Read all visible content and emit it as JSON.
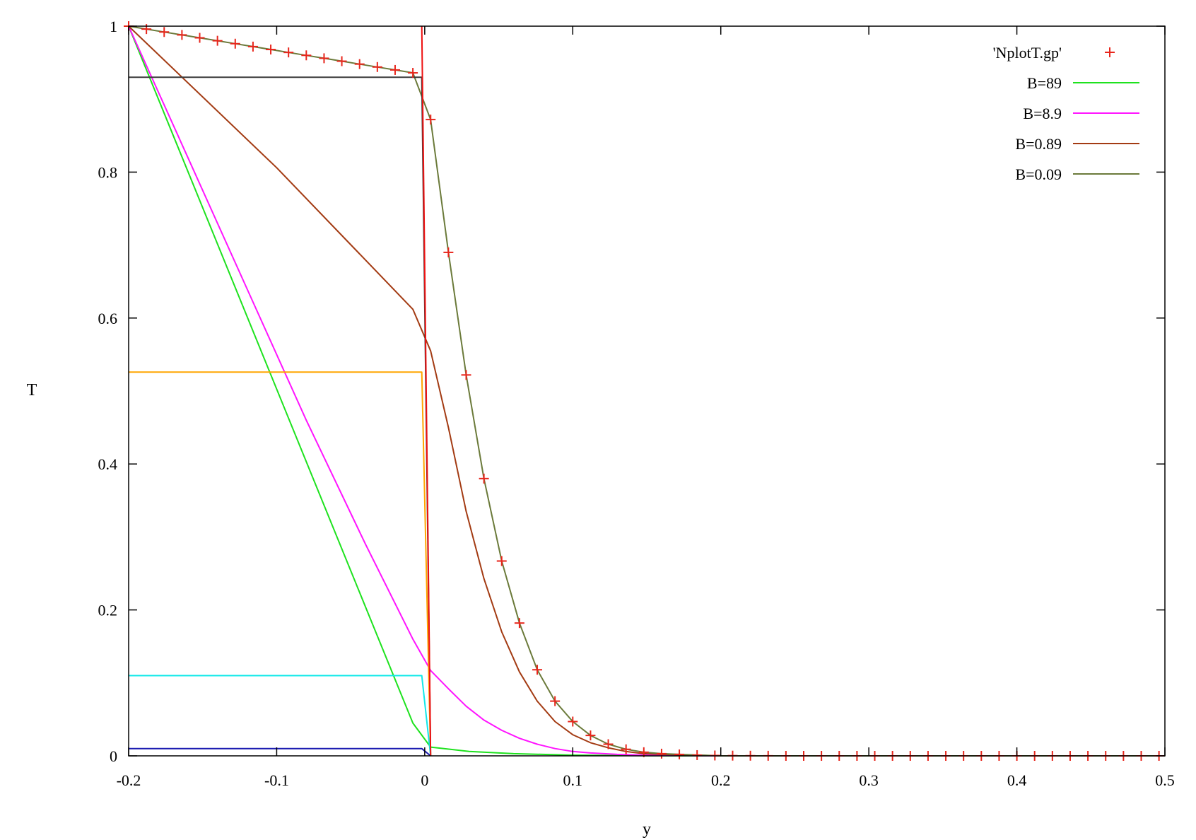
{
  "chart_data": {
    "type": "line",
    "xlabel": "y",
    "ylabel": "T",
    "xlim": [
      -0.2,
      0.5
    ],
    "ylim": [
      0,
      1
    ],
    "xticks": [
      "-0.2",
      "-0.1",
      "0",
      "0.1",
      "0.2",
      "0.3",
      "0.4",
      "0.5"
    ],
    "yticks": [
      "0",
      "0.2",
      "0.4",
      "0.6",
      "0.8",
      "1"
    ],
    "grid": false,
    "legend_position": "top-right",
    "series": [
      {
        "name": "'NplotT.gp'",
        "style": "points",
        "marker": "+",
        "color": "#e8261c",
        "x": [
          -0.2,
          -0.188,
          -0.176,
          -0.164,
          -0.152,
          -0.14,
          -0.128,
          -0.116,
          -0.104,
          -0.092,
          -0.08,
          -0.068,
          -0.056,
          -0.044,
          -0.032,
          -0.02,
          -0.008,
          0.004,
          0.016,
          0.028,
          0.04,
          0.052,
          0.064,
          0.076,
          0.088,
          0.1,
          0.112,
          0.124,
          0.136,
          0.148,
          0.16,
          0.172,
          0.184,
          0.196,
          0.208,
          0.22,
          0.232,
          0.244,
          0.256,
          0.268,
          0.28,
          0.292,
          0.304,
          0.316,
          0.328,
          0.34,
          0.352,
          0.364,
          0.376,
          0.388,
          0.4,
          0.412,
          0.424,
          0.436,
          0.448,
          0.46,
          0.472,
          0.484,
          0.496
        ],
        "y": [
          1.0,
          0.996,
          0.992,
          0.988,
          0.984,
          0.98,
          0.976,
          0.972,
          0.968,
          0.964,
          0.96,
          0.956,
          0.952,
          0.948,
          0.944,
          0.94,
          0.936,
          0.872,
          0.69,
          0.522,
          0.38,
          0.267,
          0.182,
          0.118,
          0.075,
          0.047,
          0.028,
          0.016,
          0.009,
          0.005,
          0.003,
          0.002,
          0.001,
          0.0005,
          0.0003,
          0.0002,
          0.0001,
          0,
          0,
          0,
          0,
          0,
          0,
          0,
          0,
          0,
          0,
          0,
          0,
          0,
          0,
          0,
          0,
          0,
          0,
          0,
          0,
          0,
          0
        ]
      },
      {
        "name": "B=89",
        "color": "#1ee21e",
        "x": [
          -0.2,
          -0.008,
          0.004,
          0.03,
          0.06,
          0.1,
          0.15,
          0.2,
          0.5
        ],
        "y": [
          1.0,
          0.045,
          0.012,
          0.006,
          0.003,
          0.001,
          0.0003,
          0,
          0
        ]
      },
      {
        "name": "B=8.9",
        "color": "#ff14ff",
        "x": [
          -0.2,
          -0.16,
          -0.12,
          -0.08,
          -0.04,
          -0.008,
          0.004,
          0.016,
          0.028,
          0.04,
          0.052,
          0.064,
          0.076,
          0.088,
          0.1,
          0.112,
          0.13,
          0.15,
          0.2,
          0.5
        ],
        "y": [
          1.0,
          0.82,
          0.64,
          0.46,
          0.29,
          0.16,
          0.117,
          0.092,
          0.068,
          0.049,
          0.035,
          0.024,
          0.016,
          0.01,
          0.006,
          0.004,
          0.002,
          0.001,
          0,
          0
        ]
      },
      {
        "name": "B=0.89",
        "color": "#a33b13",
        "x": [
          -0.2,
          -0.1,
          -0.008,
          0.004,
          0.016,
          0.028,
          0.04,
          0.052,
          0.064,
          0.076,
          0.088,
          0.1,
          0.112,
          0.124,
          0.136,
          0.148,
          0.16,
          0.2,
          0.5
        ],
        "y": [
          1.0,
          0.806,
          0.612,
          0.555,
          0.45,
          0.335,
          0.243,
          0.17,
          0.115,
          0.075,
          0.047,
          0.029,
          0.018,
          0.011,
          0.006,
          0.003,
          0.002,
          0,
          0
        ]
      },
      {
        "name": "B=0.09",
        "color": "#6b7a3a",
        "x": [
          -0.2,
          -0.188,
          -0.176,
          -0.164,
          -0.152,
          -0.14,
          -0.128,
          -0.116,
          -0.104,
          -0.092,
          -0.08,
          -0.068,
          -0.056,
          -0.044,
          -0.032,
          -0.02,
          -0.008,
          0.004,
          0.016,
          0.028,
          0.04,
          0.052,
          0.064,
          0.076,
          0.088,
          0.1,
          0.112,
          0.124,
          0.136,
          0.148,
          0.16,
          0.172,
          0.2,
          0.5
        ],
        "y": [
          1.0,
          0.996,
          0.992,
          0.988,
          0.984,
          0.98,
          0.976,
          0.972,
          0.968,
          0.964,
          0.96,
          0.956,
          0.952,
          0.948,
          0.944,
          0.94,
          0.936,
          0.872,
          0.69,
          0.522,
          0.38,
          0.267,
          0.182,
          0.118,
          0.075,
          0.047,
          0.028,
          0.016,
          0.009,
          0.005,
          0.003,
          0.002,
          0,
          0
        ]
      },
      {
        "name": "",
        "color": "#3c3c3c",
        "x": [
          -0.2,
          -0.002,
          0.004
        ],
        "y": [
          0.93,
          0.93,
          0
        ]
      },
      {
        "name": "",
        "color": "#ffa500",
        "x": [
          -0.2,
          -0.002,
          0.004
        ],
        "y": [
          0.526,
          0.526,
          0
        ]
      },
      {
        "name": "",
        "color": "#12e8e8",
        "x": [
          -0.2,
          -0.002,
          0.004
        ],
        "y": [
          0.11,
          0.11,
          0
        ]
      },
      {
        "name": "",
        "color": "#1a1ab0",
        "x": [
          -0.2,
          -0.002,
          0.004
        ],
        "y": [
          0.01,
          0.01,
          0
        ]
      },
      {
        "name": "",
        "color": "#ee1111",
        "x": [
          -0.002,
          0.004
        ],
        "y": [
          1.0,
          0
        ]
      }
    ]
  }
}
